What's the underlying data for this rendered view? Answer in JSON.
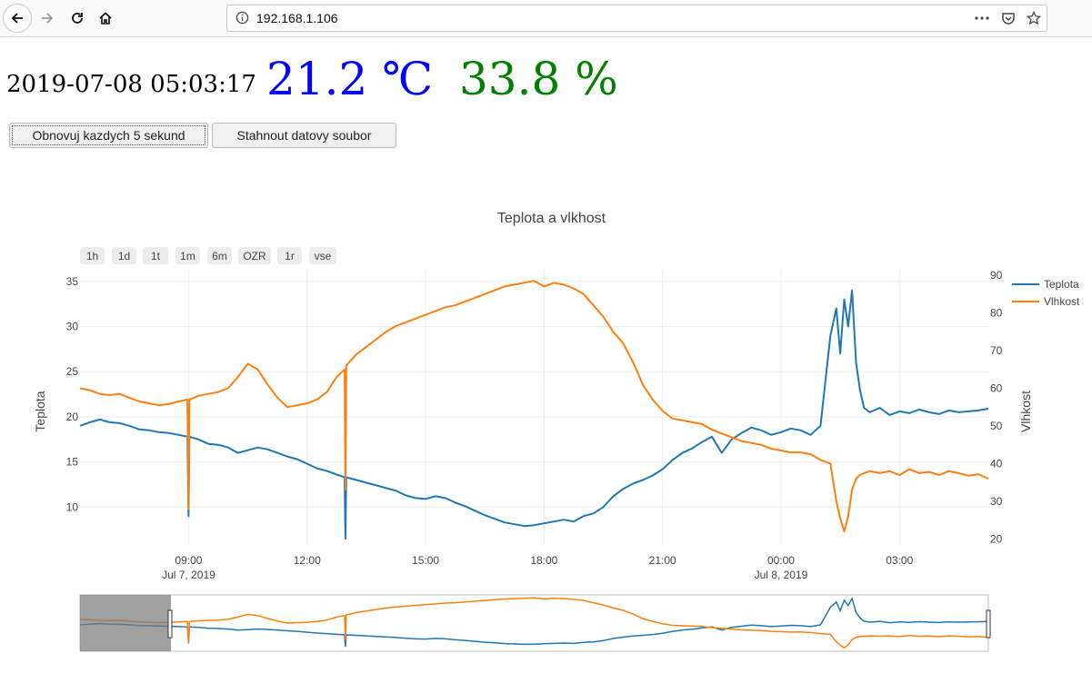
{
  "browser": {
    "url": "192.168.1.106",
    "icons": [
      "back-icon",
      "forward-icon",
      "reload-icon",
      "home-icon",
      "info-icon",
      "more-icon",
      "pocket-icon",
      "bookmark-star-icon"
    ]
  },
  "header": {
    "datetime": "2019-07-08 05:03:17",
    "temperature": "21.2 ℃",
    "humidity": "33.8 %",
    "temperature_color": "#0000ff",
    "humidity_color": "#008000"
  },
  "buttons": {
    "refresh": "Obnovuj kazdych 5 sekund",
    "download": "Stahnout datovy soubor"
  },
  "chart_data": {
    "type": "line",
    "title": "Teplota a vlkhost",
    "range_buttons": [
      "1h",
      "1d",
      "1t",
      "1m",
      "6m",
      "OZR",
      "1r",
      "vse"
    ],
    "y_left": {
      "label": "Teplota",
      "ticks": [
        10,
        15,
        20,
        25,
        30,
        35
      ]
    },
    "y_right": {
      "label": "Vlhkost",
      "ticks": [
        20,
        30,
        40,
        50,
        60,
        70,
        80,
        90
      ]
    },
    "x_ticks": [
      {
        "label": "09:00",
        "sub": "Jul 7, 2019"
      },
      {
        "label": "12:00",
        "sub": ""
      },
      {
        "label": "15:00",
        "sub": ""
      },
      {
        "label": "18:00",
        "sub": ""
      },
      {
        "label": "21:00",
        "sub": ""
      },
      {
        "label": "00:00",
        "sub": "Jul 8, 2019"
      },
      {
        "label": "03:00",
        "sub": ""
      }
    ],
    "grid": true,
    "legend_position": "top-right",
    "series": [
      {
        "name": "Teplota",
        "axis": "left",
        "color": "#1f77b4",
        "x": [
          6.25,
          6.5,
          6.75,
          7.0,
          7.25,
          7.5,
          7.75,
          8.0,
          8.25,
          8.5,
          8.75,
          8.97,
          9.0,
          9.02,
          9.25,
          9.5,
          9.75,
          10.0,
          10.25,
          10.5,
          10.75,
          11.0,
          11.25,
          11.5,
          11.75,
          12.0,
          12.25,
          12.5,
          12.75,
          12.95,
          12.97,
          12.99,
          13.25,
          13.5,
          13.75,
          14.0,
          14.25,
          14.5,
          14.75,
          15.0,
          15.25,
          15.5,
          15.75,
          16.0,
          16.25,
          16.5,
          16.75,
          17.0,
          17.25,
          17.5,
          17.75,
          18.0,
          18.25,
          18.5,
          18.75,
          19.0,
          19.25,
          19.5,
          19.75,
          20.0,
          20.25,
          20.5,
          20.75,
          21.0,
          21.25,
          21.5,
          21.75,
          22.0,
          22.25,
          22.5,
          22.75,
          23.0,
          23.25,
          23.5,
          23.75,
          24.0,
          24.25,
          24.5,
          24.75,
          25.0,
          25.25,
          25.4,
          25.5,
          25.6,
          25.7,
          25.8,
          25.9,
          26.0,
          26.1,
          26.25,
          26.5,
          26.75,
          27.0,
          27.25,
          27.5,
          27.75,
          28.0,
          28.25,
          28.5,
          28.75,
          29.0,
          29.25
        ],
        "y": [
          19.0,
          19.4,
          19.7,
          19.4,
          19.3,
          19.0,
          18.6,
          18.5,
          18.3,
          18.2,
          18.0,
          17.8,
          9.0,
          17.8,
          17.5,
          17.0,
          16.9,
          16.6,
          16.0,
          16.3,
          16.6,
          16.4,
          16.0,
          15.6,
          15.3,
          14.8,
          14.3,
          14.0,
          13.6,
          13.3,
          6.5,
          13.3,
          13.0,
          12.7,
          12.4,
          12.1,
          11.8,
          11.3,
          11.0,
          10.9,
          11.2,
          11.0,
          10.5,
          10.1,
          9.6,
          9.1,
          8.7,
          8.3,
          8.1,
          7.9,
          8.0,
          8.2,
          8.4,
          8.6,
          8.4,
          9.0,
          9.3,
          10.0,
          11.2,
          12.0,
          12.6,
          13.0,
          13.5,
          14.2,
          15.2,
          16.0,
          16.5,
          17.2,
          17.8,
          16.0,
          17.5,
          18.2,
          18.8,
          18.5,
          18.0,
          18.3,
          18.7,
          18.5,
          18.0,
          19.0,
          29.0,
          32.0,
          27.0,
          33.0,
          30.0,
          34.0,
          26.0,
          23.0,
          21.0,
          20.5,
          21.0,
          20.2,
          20.6,
          20.4,
          20.8,
          20.5,
          20.3,
          20.7,
          20.5,
          20.6,
          20.7,
          20.9
        ]
      },
      {
        "name": "Vlhkost",
        "axis": "right",
        "color": "#ff7f0e",
        "x": [
          6.25,
          6.5,
          6.75,
          7.0,
          7.25,
          7.5,
          7.75,
          8.0,
          8.25,
          8.5,
          8.75,
          8.97,
          9.0,
          9.02,
          9.25,
          9.5,
          9.75,
          10.0,
          10.25,
          10.5,
          10.75,
          11.0,
          11.25,
          11.5,
          11.75,
          12.0,
          12.25,
          12.5,
          12.75,
          12.95,
          12.97,
          12.99,
          13.25,
          13.5,
          13.75,
          14.0,
          14.25,
          14.5,
          14.75,
          15.0,
          15.25,
          15.5,
          15.75,
          16.0,
          16.25,
          16.5,
          16.75,
          17.0,
          17.25,
          17.5,
          17.75,
          18.0,
          18.25,
          18.5,
          18.75,
          19.0,
          19.25,
          19.5,
          19.75,
          20.0,
          20.25,
          20.5,
          20.75,
          21.0,
          21.25,
          21.5,
          21.75,
          22.0,
          22.25,
          22.5,
          22.75,
          23.0,
          23.25,
          23.5,
          23.75,
          24.0,
          24.25,
          24.5,
          24.75,
          25.0,
          25.25,
          25.4,
          25.5,
          25.6,
          25.7,
          25.8,
          25.9,
          26.0,
          26.1,
          26.25,
          26.5,
          26.75,
          27.0,
          27.25,
          27.5,
          27.75,
          28.0,
          28.25,
          28.5,
          28.75,
          29.0,
          29.25
        ],
        "y": [
          60.0,
          59.5,
          58.5,
          58.2,
          58.5,
          57.5,
          56.5,
          56.0,
          55.5,
          55.8,
          56.5,
          57.0,
          28.0,
          57.0,
          58.0,
          58.5,
          59.0,
          60.0,
          63.0,
          66.5,
          65.0,
          61.0,
          57.5,
          55.0,
          55.5,
          56.0,
          57.0,
          59.0,
          63.0,
          65.0,
          33.0,
          66.0,
          69.0,
          71.0,
          73.0,
          75.0,
          76.5,
          77.5,
          78.5,
          79.5,
          80.5,
          81.5,
          82.0,
          83.0,
          84.0,
          85.0,
          86.0,
          87.0,
          87.5,
          88.0,
          88.5,
          87.0,
          88.0,
          87.5,
          86.5,
          85.0,
          82.0,
          79.0,
          75.0,
          72.0,
          67.0,
          61.0,
          57.0,
          54.0,
          52.0,
          51.5,
          51.0,
          50.5,
          49.0,
          48.0,
          47.0,
          46.0,
          45.5,
          45.0,
          44.0,
          43.5,
          43.0,
          43.0,
          42.5,
          41.0,
          40.0,
          30.0,
          25.5,
          22.0,
          26.0,
          33.0,
          36.0,
          37.0,
          37.5,
          38.0,
          37.5,
          38.0,
          37.0,
          38.5,
          37.5,
          37.8,
          37.0,
          38.0,
          37.5,
          36.8,
          37.2,
          36.0
        ]
      }
    ]
  }
}
